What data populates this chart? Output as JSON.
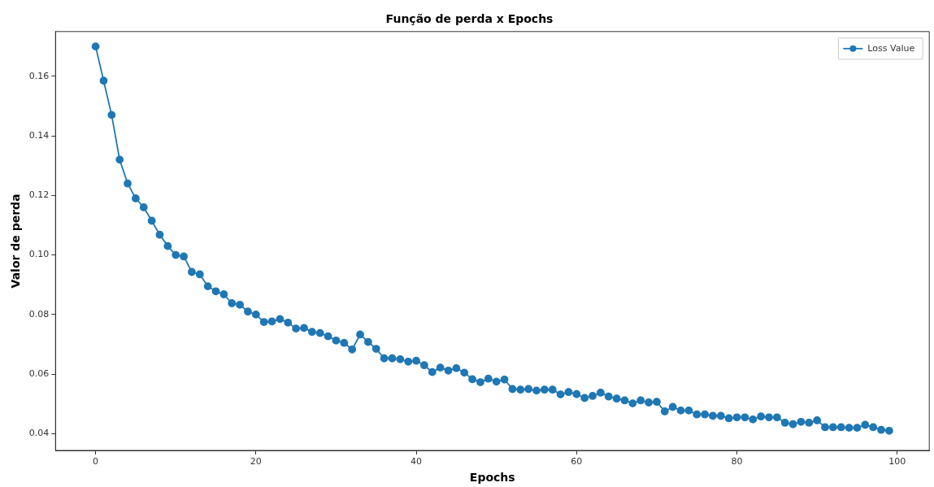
{
  "chart_data": {
    "type": "line",
    "title": "Função de perda x Epochs",
    "xlabel": "Epochs",
    "ylabel": "Valor de perda",
    "x": [
      0,
      1,
      2,
      3,
      4,
      5,
      6,
      7,
      8,
      9,
      10,
      11,
      12,
      13,
      14,
      15,
      16,
      17,
      18,
      19,
      20,
      21,
      22,
      23,
      24,
      25,
      26,
      27,
      28,
      29,
      30,
      31,
      32,
      33,
      34,
      35,
      36,
      37,
      38,
      39,
      40,
      41,
      42,
      43,
      44,
      45,
      46,
      47,
      48,
      49,
      50,
      51,
      52,
      53,
      54,
      55,
      56,
      57,
      58,
      59,
      60,
      61,
      62,
      63,
      64,
      65,
      66,
      67,
      68,
      69,
      70,
      71,
      72,
      73,
      74,
      75,
      76,
      77,
      78,
      79,
      80,
      81,
      82,
      83,
      84,
      85,
      86,
      87,
      88,
      89,
      90,
      91,
      92,
      93,
      94,
      95,
      96,
      97,
      98,
      99
    ],
    "series": [
      {
        "name": "Loss Value",
        "color": "#1f77b4",
        "values": [
          0.17,
          0.1585,
          0.147,
          0.132,
          0.124,
          0.119,
          0.116,
          0.1115,
          0.1068,
          0.103,
          0.1,
          0.0995,
          0.0943,
          0.0935,
          0.0895,
          0.0878,
          0.0868,
          0.0838,
          0.0833,
          0.081,
          0.08,
          0.0775,
          0.0777,
          0.0785,
          0.0773,
          0.0753,
          0.0755,
          0.0742,
          0.0738,
          0.0727,
          0.0713,
          0.0705,
          0.0683,
          0.0733,
          0.0708,
          0.0685,
          0.0653,
          0.0653,
          0.065,
          0.0642,
          0.0645,
          0.063,
          0.0607,
          0.0622,
          0.0612,
          0.062,
          0.0605,
          0.0583,
          0.0573,
          0.0585,
          0.0575,
          0.0582,
          0.055,
          0.0548,
          0.055,
          0.0545,
          0.0548,
          0.0548,
          0.0532,
          0.054,
          0.0533,
          0.052,
          0.0527,
          0.0538,
          0.0525,
          0.0518,
          0.0512,
          0.0502,
          0.0512,
          0.0505,
          0.0507,
          0.0475,
          0.049,
          0.0478,
          0.0478,
          0.0465,
          0.0465,
          0.046,
          0.046,
          0.0452,
          0.0455,
          0.0455,
          0.0448,
          0.0458,
          0.0455,
          0.0455,
          0.0437,
          0.0432,
          0.044,
          0.0437,
          0.0445,
          0.0422,
          0.0422,
          0.0422,
          0.042,
          0.042,
          0.043,
          0.0422,
          0.0413,
          0.041
        ]
      }
    ],
    "xlim": [
      -5,
      104
    ],
    "xticks": [
      0,
      20,
      40,
      60,
      80,
      100
    ],
    "ylim": [
      0.0344,
      0.175
    ],
    "yticks": [
      {
        "value": 0.04,
        "label": "0.04"
      },
      {
        "value": 0.06,
        "label": "0.06"
      },
      {
        "value": 0.08,
        "label": "0.08"
      },
      {
        "value": 0.1,
        "label": "0.10"
      },
      {
        "value": 0.12,
        "label": "0.12"
      },
      {
        "value": 0.14,
        "label": "0.14"
      },
      {
        "value": 0.16,
        "label": "0.16"
      }
    ],
    "grid": false,
    "legend": "top right",
    "marker": "circle",
    "line_style": "solid"
  }
}
